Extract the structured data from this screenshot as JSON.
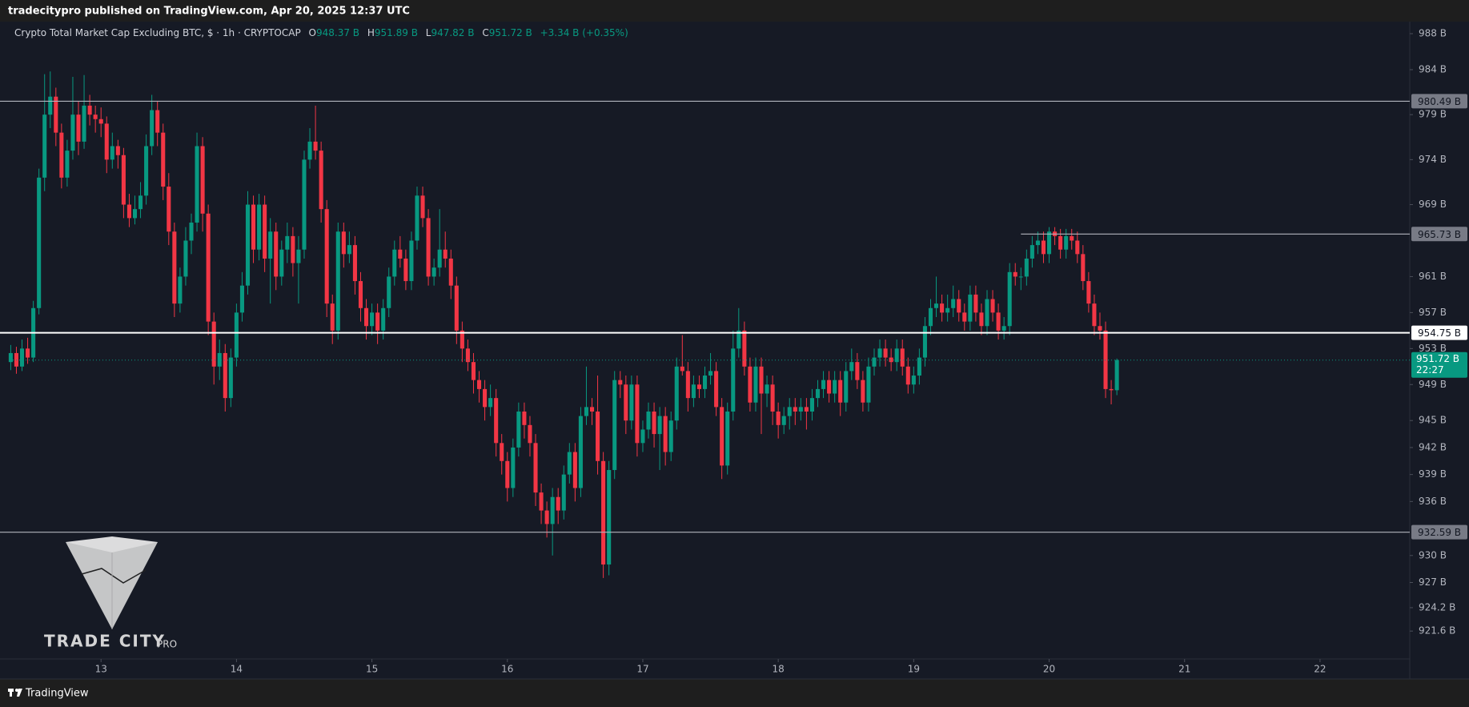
{
  "header": {
    "text": "tradecitypro published on TradingView.com, Apr 20, 2025 12:37 UTC"
  },
  "chart_data": {
    "type": "candlestick",
    "title": "Crypto Total Market Cap Excluding BTC, $ · 1h · CRYPTOCAP",
    "legend_ohlc": [
      {
        "label": "O",
        "value": "948.37 B"
      },
      {
        "label": "H",
        "value": "951.89 B"
      },
      {
        "label": "L",
        "value": "947.82 B"
      },
      {
        "label": "C",
        "value": "951.72 B"
      }
    ],
    "change": "+3.34 B (+0.35%)",
    "up_color": "#089981",
    "down_color": "#f23645",
    "x": [
      -16,
      -15,
      -14,
      -13,
      -12,
      -11,
      -10,
      -9,
      -8,
      -7,
      -6,
      -5,
      -4,
      -3,
      -2,
      -1,
      0,
      1,
      2,
      3,
      4,
      5,
      6,
      7,
      8,
      9,
      10,
      11,
      12,
      13,
      14,
      15,
      16,
      17,
      18,
      19,
      20,
      21,
      22,
      23,
      24,
      25,
      26,
      27,
      28,
      29,
      30,
      31,
      32,
      33,
      34,
      35,
      36,
      37,
      38,
      39,
      40,
      41,
      42,
      43,
      44,
      45,
      46,
      47,
      48,
      49,
      50,
      51,
      52,
      53,
      54,
      55,
      56,
      57,
      58,
      59,
      60,
      61,
      62,
      63,
      64,
      65,
      66,
      67,
      68,
      69,
      70,
      71,
      72,
      73,
      74,
      75,
      76,
      77,
      78,
      79,
      80,
      81,
      82,
      83,
      84,
      85,
      86,
      87,
      88,
      89,
      90,
      91,
      92,
      93,
      94,
      95,
      96,
      97,
      98,
      99,
      100,
      101,
      102,
      103,
      104,
      105,
      106,
      107,
      108,
      109,
      110,
      111,
      112,
      113,
      114,
      115,
      116,
      117,
      118,
      119,
      120,
      121,
      122,
      123,
      124,
      125,
      126,
      127,
      128,
      129,
      130,
      131,
      132,
      133,
      134,
      135,
      136,
      137,
      138,
      139,
      140,
      141,
      142,
      143,
      144,
      145,
      146,
      147,
      148,
      149,
      150,
      151,
      152,
      153,
      154,
      155,
      156,
      157,
      158,
      159,
      160,
      161,
      162,
      163,
      164,
      165,
      166,
      167,
      168,
      169,
      170,
      171,
      172,
      173,
      174,
      175,
      176,
      177,
      178,
      179,
      180
    ],
    "ohlc": [
      [
        951.5,
        953.4,
        950.6,
        952.5
      ],
      [
        952.5,
        953.2,
        950.2,
        951
      ],
      [
        951,
        954,
        950.5,
        953
      ],
      [
        953,
        954.2,
        951.3,
        952
      ],
      [
        952,
        958.3,
        951.5,
        957.5
      ],
      [
        957.5,
        973,
        956.8,
        972
      ],
      [
        972,
        983.5,
        970.5,
        979
      ],
      [
        979,
        983.8,
        977.5,
        981
      ],
      [
        981,
        982,
        975.5,
        977
      ],
      [
        977,
        978,
        970.8,
        972
      ],
      [
        972,
        976.2,
        971,
        975
      ],
      [
        975,
        983.2,
        974,
        979
      ],
      [
        979,
        980.5,
        974.5,
        976
      ],
      [
        976,
        983.4,
        975.2,
        980
      ],
      [
        980,
        981.2,
        977.8,
        979
      ],
      [
        979,
        980,
        977,
        978.5
      ],
      [
        978.5,
        979.8,
        976.5,
        978
      ],
      [
        978,
        978.8,
        972.5,
        974
      ],
      [
        974,
        977,
        973,
        975.5
      ],
      [
        975.5,
        976.2,
        973,
        974.5
      ],
      [
        974.5,
        975.3,
        967.5,
        969
      ],
      [
        969,
        970.2,
        966.5,
        967.5
      ],
      [
        967.5,
        970,
        966.8,
        968.5
      ],
      [
        968.5,
        971.5,
        967.5,
        970
      ],
      [
        970,
        976.8,
        969,
        975.5
      ],
      [
        975.5,
        981.2,
        974.5,
        979.5
      ],
      [
        979.5,
        980.5,
        975.5,
        977
      ],
      [
        977,
        978,
        969.5,
        971
      ],
      [
        971,
        972.5,
        964.5,
        966
      ],
      [
        966,
        967,
        956.5,
        958
      ],
      [
        958,
        962,
        957,
        961
      ],
      [
        961,
        966.5,
        960,
        965
      ],
      [
        965,
        968,
        963.5,
        967
      ],
      [
        967,
        977,
        966,
        975.5
      ],
      [
        975.5,
        976.5,
        966,
        968
      ],
      [
        968,
        969,
        954.5,
        956
      ],
      [
        956,
        957,
        949,
        951
      ],
      [
        951,
        954,
        949.5,
        952.5
      ],
      [
        952.5,
        953.5,
        946,
        947.5
      ],
      [
        947.5,
        953,
        946.5,
        952
      ],
      [
        952,
        958,
        951,
        957
      ],
      [
        957,
        961.5,
        956,
        960
      ],
      [
        960,
        970.5,
        959,
        969
      ],
      [
        969,
        970,
        962.5,
        964
      ],
      [
        964,
        970.2,
        962.8,
        969
      ],
      [
        969,
        970,
        961.5,
        963
      ],
      [
        963,
        967.5,
        958,
        966
      ],
      [
        966,
        967,
        959.5,
        961
      ],
      [
        961,
        965,
        960,
        964
      ],
      [
        964,
        967,
        962.5,
        965.5
      ],
      [
        965.5,
        966.5,
        961,
        962.5
      ],
      [
        962.5,
        965.5,
        958,
        964
      ],
      [
        964,
        975,
        963,
        974
      ],
      [
        974,
        977.5,
        973,
        976
      ],
      [
        976,
        980,
        974,
        975
      ],
      [
        975,
        976,
        967,
        968.5
      ],
      [
        968.5,
        969.5,
        956.5,
        958
      ],
      [
        958,
        959,
        953.5,
        955
      ],
      [
        955,
        967,
        954,
        966
      ],
      [
        966,
        967,
        962,
        963.5
      ],
      [
        963.5,
        966,
        962.5,
        964.5
      ],
      [
        964.5,
        965.5,
        959,
        960.5
      ],
      [
        960.5,
        961.5,
        956,
        957.5
      ],
      [
        957.5,
        958.5,
        954,
        955.5
      ],
      [
        955.5,
        958,
        954.5,
        957
      ],
      [
        957,
        958,
        953.5,
        955
      ],
      [
        955,
        958.5,
        954,
        957.5
      ],
      [
        957.5,
        962,
        956.5,
        961
      ],
      [
        961,
        965,
        960,
        964
      ],
      [
        964,
        965.5,
        962,
        963
      ],
      [
        963,
        964,
        959.5,
        960.5
      ],
      [
        960.5,
        966,
        959.5,
        965
      ],
      [
        965,
        971,
        964,
        970
      ],
      [
        970,
        971,
        966.5,
        967.5
      ],
      [
        967.5,
        968.5,
        960,
        961
      ],
      [
        961,
        963,
        960,
        962
      ],
      [
        962,
        968.5,
        961,
        964
      ],
      [
        964,
        966,
        962,
        963
      ],
      [
        963,
        964,
        958.5,
        960
      ],
      [
        960,
        961,
        953.5,
        955
      ],
      [
        955,
        956,
        951.5,
        953
      ],
      [
        953,
        954,
        950.5,
        951.5
      ],
      [
        951.5,
        952.5,
        948,
        949.5
      ],
      [
        949.5,
        950.5,
        947,
        948.5
      ],
      [
        948.5,
        949.5,
        945,
        946.5
      ],
      [
        946.5,
        949,
        945.5,
        947.5
      ],
      [
        947.5,
        948.5,
        941,
        942.5
      ],
      [
        942.5,
        943.5,
        939,
        940.5
      ],
      [
        940.5,
        941.5,
        936,
        937.5
      ],
      [
        937.5,
        943,
        936.5,
        942
      ],
      [
        942,
        947,
        941,
        946
      ],
      [
        946,
        947,
        943,
        944.5
      ],
      [
        944.5,
        945.5,
        941,
        942.5
      ],
      [
        942.5,
        943.5,
        935.5,
        937
      ],
      [
        937,
        938,
        933.5,
        935
      ],
      [
        935,
        936,
        932,
        933.5
      ],
      [
        933.5,
        937.5,
        930,
        936.5
      ],
      [
        936.5,
        937.5,
        933.5,
        935
      ],
      [
        935,
        940,
        934,
        939
      ],
      [
        939,
        942.5,
        938,
        941.5
      ],
      [
        941.5,
        942.5,
        936,
        937.5
      ],
      [
        937.5,
        946.5,
        936.5,
        945.5
      ],
      [
        945.5,
        951,
        944.5,
        946.5
      ],
      [
        946.5,
        947.5,
        944.5,
        946
      ],
      [
        946,
        950,
        939,
        940.5
      ],
      [
        940.5,
        941.5,
        927.5,
        929
      ],
      [
        929,
        940.5,
        927.8,
        939.5
      ],
      [
        939.5,
        950.5,
        938.5,
        949.5
      ],
      [
        949.5,
        950.5,
        947.5,
        949
      ],
      [
        949,
        950,
        943.5,
        945
      ],
      [
        945,
        950,
        944,
        949
      ],
      [
        949,
        950,
        941,
        942.5
      ],
      [
        942.5,
        945,
        941.5,
        944
      ],
      [
        944,
        947,
        943,
        946
      ],
      [
        946,
        947,
        942,
        943.5
      ],
      [
        943.5,
        946.5,
        939.5,
        945.5
      ],
      [
        945.5,
        946.5,
        940,
        941.5
      ],
      [
        941.5,
        946,
        940.5,
        945
      ],
      [
        945,
        952,
        944,
        951
      ],
      [
        951,
        954.5,
        950,
        950.5
      ],
      [
        950.5,
        951.5,
        946,
        947.5
      ],
      [
        947.5,
        950,
        946.5,
        949
      ],
      [
        949,
        950,
        947.5,
        948.5
      ],
      [
        948.5,
        951,
        947.5,
        950
      ],
      [
        950,
        952.5,
        949,
        950.5
      ],
      [
        950.5,
        951.5,
        945.5,
        946.5
      ],
      [
        946.5,
        947.5,
        938.5,
        940
      ],
      [
        940,
        947,
        939,
        946
      ],
      [
        946,
        955,
        945,
        953
      ],
      [
        953,
        957.5,
        952,
        955
      ],
      [
        955,
        956,
        950,
        951
      ],
      [
        951,
        952,
        946,
        947
      ],
      [
        947,
        952,
        946,
        951
      ],
      [
        951,
        952,
        943.5,
        948
      ],
      [
        948,
        950,
        946.5,
        949
      ],
      [
        949,
        950,
        944.5,
        946
      ],
      [
        946,
        947,
        943,
        944.5
      ],
      [
        944.5,
        946.5,
        943.5,
        945.5
      ],
      [
        945.5,
        947.5,
        944,
        946.5
      ],
      [
        946.5,
        947.5,
        944.5,
        946
      ],
      [
        946,
        947.5,
        945,
        946.5
      ],
      [
        946.5,
        947.5,
        944,
        946
      ],
      [
        946,
        948.5,
        945,
        947.5
      ],
      [
        947.5,
        949.5,
        946.5,
        948.5
      ],
      [
        948.5,
        950.5,
        947.5,
        949.5
      ],
      [
        949.5,
        950.5,
        947,
        948
      ],
      [
        948,
        950.5,
        947,
        949.5
      ],
      [
        949.5,
        950.5,
        945.5,
        947
      ],
      [
        947,
        951.5,
        946,
        950.5
      ],
      [
        950.5,
        953,
        949.5,
        951.5
      ],
      [
        951.5,
        952.5,
        948.5,
        949.5
      ],
      [
        949.5,
        950.5,
        946,
        947
      ],
      [
        947,
        952,
        946,
        951
      ],
      [
        951,
        953,
        950,
        952
      ],
      [
        952,
        954,
        951,
        953
      ],
      [
        953,
        954,
        951,
        952
      ],
      [
        952,
        953,
        950.5,
        951.5
      ],
      [
        951.5,
        954,
        950.5,
        953
      ],
      [
        953,
        954,
        950,
        951
      ],
      [
        951,
        952,
        948,
        949
      ],
      [
        949,
        951,
        948,
        950
      ],
      [
        950,
        953,
        949,
        952
      ],
      [
        952,
        956.5,
        951,
        955.5
      ],
      [
        955.5,
        958.5,
        954.5,
        957.5
      ],
      [
        957.5,
        961,
        956.5,
        958
      ],
      [
        958,
        959,
        956,
        957
      ],
      [
        957,
        959,
        956,
        957.5
      ],
      [
        957.5,
        960,
        956.5,
        958.5
      ],
      [
        958.5,
        959.5,
        956,
        957
      ],
      [
        957,
        958,
        955,
        956
      ],
      [
        956,
        960,
        955,
        959
      ],
      [
        959,
        960,
        956,
        957
      ],
      [
        957,
        958,
        954.5,
        955.5
      ],
      [
        955.5,
        959.5,
        954.5,
        958.5
      ],
      [
        958.5,
        959.5,
        956,
        957
      ],
      [
        957,
        958,
        954,
        955
      ],
      [
        955,
        956.5,
        954,
        955.5
      ],
      [
        955.5,
        962.5,
        954.5,
        961.5
      ],
      [
        961.5,
        962.5,
        960,
        961
      ],
      [
        961,
        962,
        959.5,
        961
      ],
      [
        961,
        964,
        960,
        963
      ],
      [
        963,
        965.5,
        962,
        964.5
      ],
      [
        964.5,
        966,
        963.5,
        965
      ],
      [
        965,
        966,
        962.5,
        963.5
      ],
      [
        963.5,
        966.5,
        962.5,
        966
      ],
      [
        966,
        966.5,
        964.5,
        965.5
      ],
      [
        965.5,
        966.3,
        963,
        964
      ],
      [
        964,
        966.3,
        963,
        965.5
      ],
      [
        965.5,
        966.3,
        964,
        965
      ],
      [
        965,
        966,
        962.5,
        963.5
      ],
      [
        963.5,
        964.5,
        959.5,
        960.5
      ],
      [
        960.5,
        961.5,
        957,
        958
      ],
      [
        958,
        959,
        954.5,
        955.5
      ],
      [
        955.5,
        957,
        954,
        955
      ],
      [
        955,
        956,
        947.5,
        948.5
      ],
      [
        948.5,
        949.5,
        946.8,
        948.37
      ],
      [
        948.37,
        951.89,
        947.82,
        951.72
      ]
    ],
    "xlim": [
      -16.2,
      231.9
    ],
    "xticks": [
      {
        "value": 0,
        "label": "13"
      },
      {
        "value": 24,
        "label": "14"
      },
      {
        "value": 48,
        "label": "15"
      },
      {
        "value": 72,
        "label": "16"
      },
      {
        "value": 96,
        "label": "17"
      },
      {
        "value": 120,
        "label": "18"
      },
      {
        "value": 144,
        "label": "19"
      },
      {
        "value": 168,
        "label": "20"
      },
      {
        "value": 192,
        "label": "21"
      },
      {
        "value": 216,
        "label": "22"
      }
    ],
    "ylim": [
      918.5,
      989.25
    ],
    "yticks": [
      {
        "value": 988,
        "label": "988 B"
      },
      {
        "value": 984,
        "label": "984 B"
      },
      {
        "value": 979,
        "label": "979 B"
      },
      {
        "value": 974,
        "label": "974 B"
      },
      {
        "value": 969,
        "label": "969 B"
      },
      {
        "value": 961,
        "label": "961 B"
      },
      {
        "value": 957,
        "label": "957 B"
      },
      {
        "value": 953,
        "label": "953 B"
      },
      {
        "value": 949,
        "label": "949 B"
      },
      {
        "value": 945,
        "label": "945 B"
      },
      {
        "value": 942,
        "label": "942 B"
      },
      {
        "value": 939,
        "label": "939 B"
      },
      {
        "value": 936,
        "label": "936 B"
      },
      {
        "value": 930,
        "label": "930 B"
      },
      {
        "value": 927,
        "label": "927 B"
      },
      {
        "value": 924.2,
        "label": "924.2 B"
      },
      {
        "value": 921.6,
        "label": "921.6 B"
      }
    ],
    "levels": [
      {
        "value": 980.49,
        "label": "980.49 B",
        "color": "#b2b5be"
      },
      {
        "value": 965.73,
        "label": "965.73 B",
        "color": "#b2b5be",
        "x_start": 163
      },
      {
        "value": 954.75,
        "label": "954.75 B",
        "color": "#ffffff"
      },
      {
        "value": 932.59,
        "label": "932.59 B",
        "color": "#b2b5be"
      }
    ],
    "last_price": {
      "value": 951.72,
      "label": "951.72 B",
      "countdown": "22:27"
    },
    "grid": false
  },
  "watermark": {
    "brand": "TRADE CITY",
    "suffix": "PRO"
  },
  "footer": {
    "text": "TradingView"
  }
}
